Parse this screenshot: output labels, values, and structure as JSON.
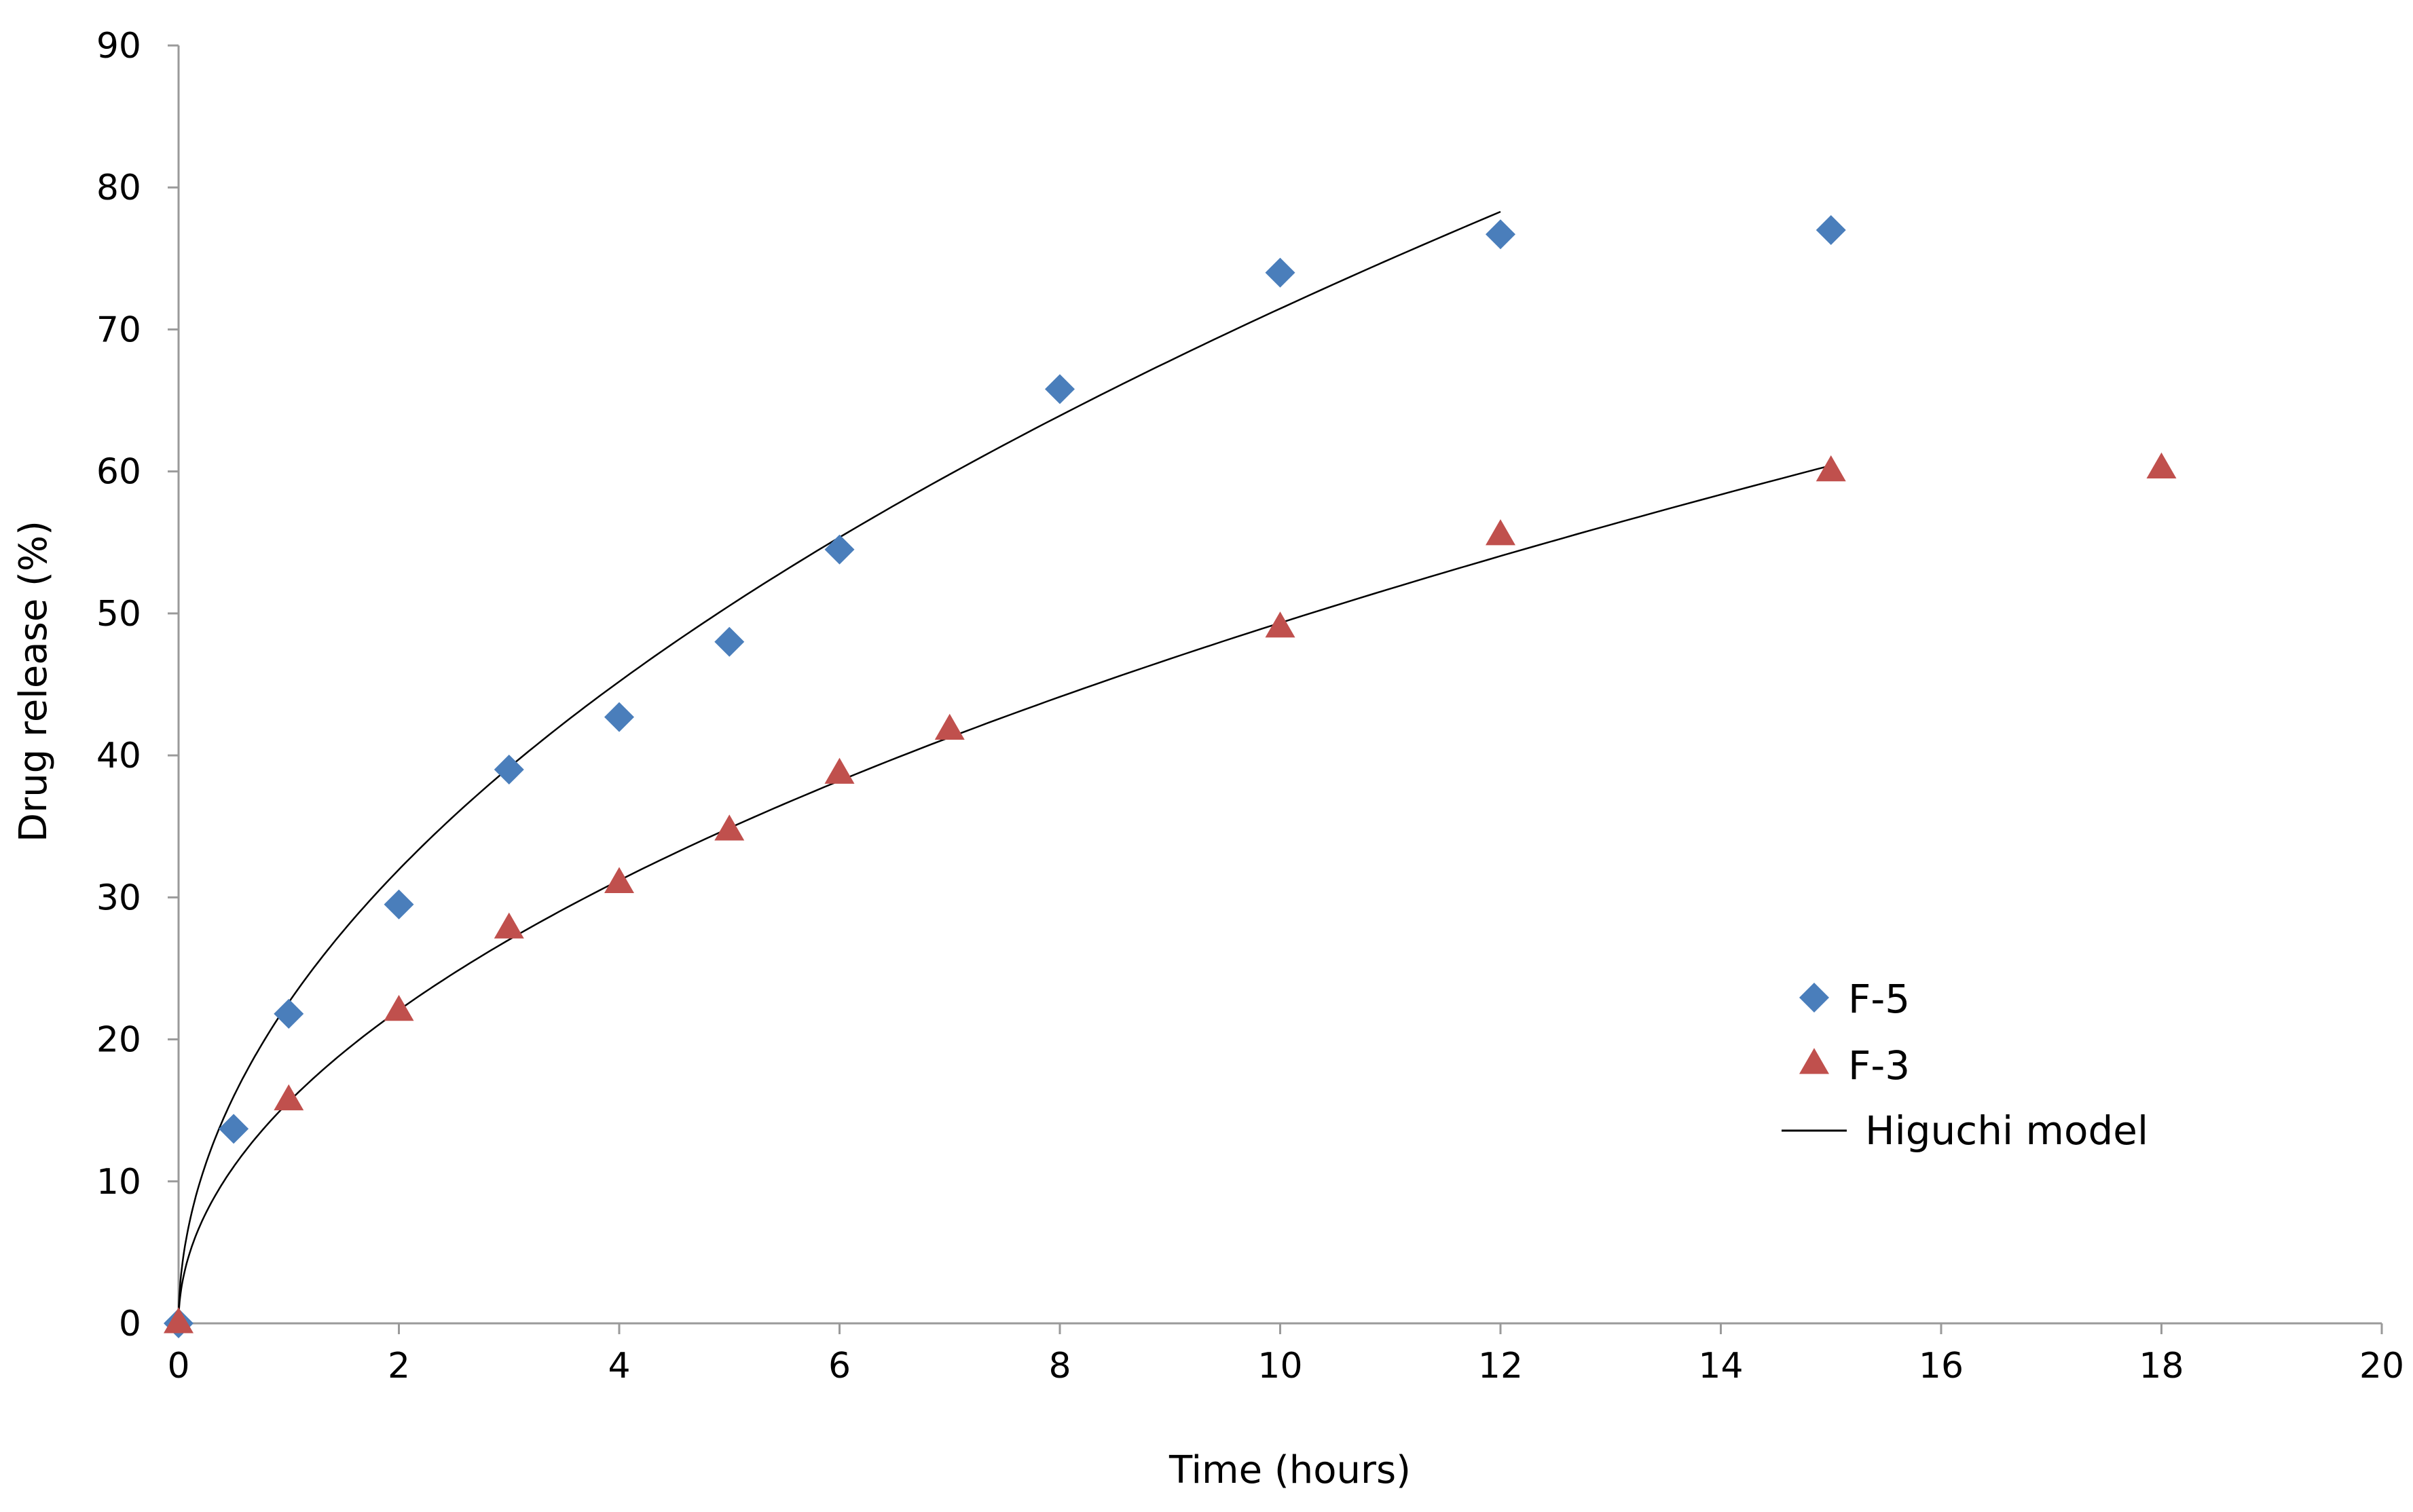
{
  "chart_data": {
    "type": "scatter",
    "title": "",
    "xlabel": "Time (hours)",
    "ylabel": "Drug release (%)",
    "xlim": [
      0,
      20
    ],
    "ylim": [
      0,
      90
    ],
    "x_ticks": [
      "0",
      "2",
      "4",
      "6",
      "8",
      "10",
      "12",
      "14",
      "16",
      "18",
      "20"
    ],
    "y_ticks": [
      "0",
      "10",
      "20",
      "30",
      "40",
      "50",
      "60",
      "70",
      "80",
      "90"
    ],
    "grid": false,
    "legend_position": "right",
    "series": [
      {
        "name": "F-5",
        "marker": "diamond",
        "color": "#4a7ebb",
        "points": [
          {
            "x": 0,
            "y": 0
          },
          {
            "x": 0.5,
            "y": 13.7
          },
          {
            "x": 1,
            "y": 21.8
          },
          {
            "x": 2,
            "y": 29.5
          },
          {
            "x": 3,
            "y": 39
          },
          {
            "x": 4,
            "y": 42.7
          },
          {
            "x": 5,
            "y": 48
          },
          {
            "x": 6,
            "y": 54.5
          },
          {
            "x": 8,
            "y": 65.8
          },
          {
            "x": 10,
            "y": 74
          },
          {
            "x": 12,
            "y": 76.7
          },
          {
            "x": 15,
            "y": 77
          }
        ]
      },
      {
        "name": "F-3",
        "marker": "triangle",
        "color": "#c0504d",
        "points": [
          {
            "x": 0,
            "y": 0
          },
          {
            "x": 1,
            "y": 15.7
          },
          {
            "x": 2,
            "y": 22
          },
          {
            "x": 3,
            "y": 27.8
          },
          {
            "x": 4,
            "y": 31
          },
          {
            "x": 5,
            "y": 34.7
          },
          {
            "x": 6,
            "y": 38.7
          },
          {
            "x": 7,
            "y": 41.8
          },
          {
            "x": 10,
            "y": 49
          },
          {
            "x": 12,
            "y": 55.5
          },
          {
            "x": 15,
            "y": 60
          },
          {
            "x": 18,
            "y": 60.2
          }
        ]
      }
    ],
    "model_curves": [
      {
        "name": "Higuchi model",
        "fit_for": "F-5",
        "k": 22.6,
        "x_max": 12,
        "color": "#000000"
      },
      {
        "name": "Higuchi model",
        "fit_for": "F-3",
        "k": 15.6,
        "x_max": 15,
        "color": "#000000"
      }
    ],
    "legend": [
      {
        "label": "F-5",
        "marker": "diamond",
        "color": "#4a7ebb"
      },
      {
        "label": "F-3",
        "marker": "triangle",
        "color": "#c0504d"
      },
      {
        "label": "Higuchi model",
        "marker": "line",
        "color": "#000000"
      }
    ]
  }
}
